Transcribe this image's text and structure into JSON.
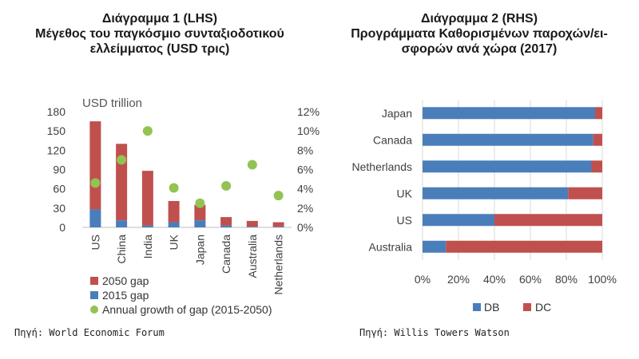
{
  "left": {
    "title_lines": [
      "Διάγραμμα 1 (LHS)",
      "Μέγεθος του παγκόσμιο συνταξιοδοτικού",
      "ελλείμματος  (USD τρις)"
    ],
    "source": "Πηγή: World Economic Forum"
  },
  "right": {
    "title_lines": [
      "Διάγραμμα 2 (RHS)",
      "Προγράμματα Καθορισμένων παροχών/ει-",
      "σφορών ανά χώρα (2017)"
    ],
    "source": "Πηγή: Willis Towers Watson"
  },
  "chart_data": [
    {
      "type": "bar",
      "stacked": true,
      "unit_label": "USD trillion",
      "categories": [
        "US",
        "China",
        "India",
        "UK",
        "Japan",
        "Canada",
        "Australia",
        "Netherlands"
      ],
      "series": [
        {
          "name": "2015 gap",
          "axis": "left",
          "color": "#4a7ebb",
          "values": [
            28,
            11,
            3,
            8,
            11,
            3,
            1,
            1
          ]
        },
        {
          "name": "2050 gap",
          "axis": "left",
          "color": "#c0504d",
          "values": [
            137,
            119,
            85,
            33,
            24,
            13,
            9,
            7
          ]
        },
        {
          "name": "Annual growth of gap (2015-2050)",
          "type": "scatter",
          "axis": "right",
          "color": "#92c353",
          "values": [
            4.6,
            7.0,
            10.0,
            4.1,
            2.5,
            4.3,
            6.5,
            3.3
          ]
        }
      ],
      "legend_order": [
        "2050 gap",
        "2015 gap",
        "Annual growth of gap (2015-2050)"
      ],
      "y_left": {
        "ylim": [
          0,
          180
        ],
        "ticks": [
          "0",
          "30",
          "60",
          "90",
          "120",
          "150",
          "180"
        ]
      },
      "y_right": {
        "ylim": [
          0,
          12
        ],
        "ticks": [
          "0%",
          "2%",
          "4%",
          "6%",
          "8%",
          "10%",
          "12%"
        ]
      },
      "legend_position": "bottom"
    },
    {
      "type": "bar",
      "orientation": "horizontal",
      "stacked": true,
      "categories": [
        "Japan",
        "Canada",
        "Netherlands",
        "UK",
        "US",
        "Australia"
      ],
      "series": [
        {
          "name": "DB",
          "color": "#4a7ebb",
          "values": [
            96,
            95,
            94,
            81,
            40,
            13
          ]
        },
        {
          "name": "DC",
          "color": "#c0504d",
          "values": [
            4,
            5,
            6,
            19,
            60,
            87
          ]
        }
      ],
      "xlim": [
        0,
        100
      ],
      "x_ticks": [
        "0%",
        "20%",
        "40%",
        "60%",
        "80%",
        "100%"
      ],
      "legend_position": "bottom"
    }
  ]
}
